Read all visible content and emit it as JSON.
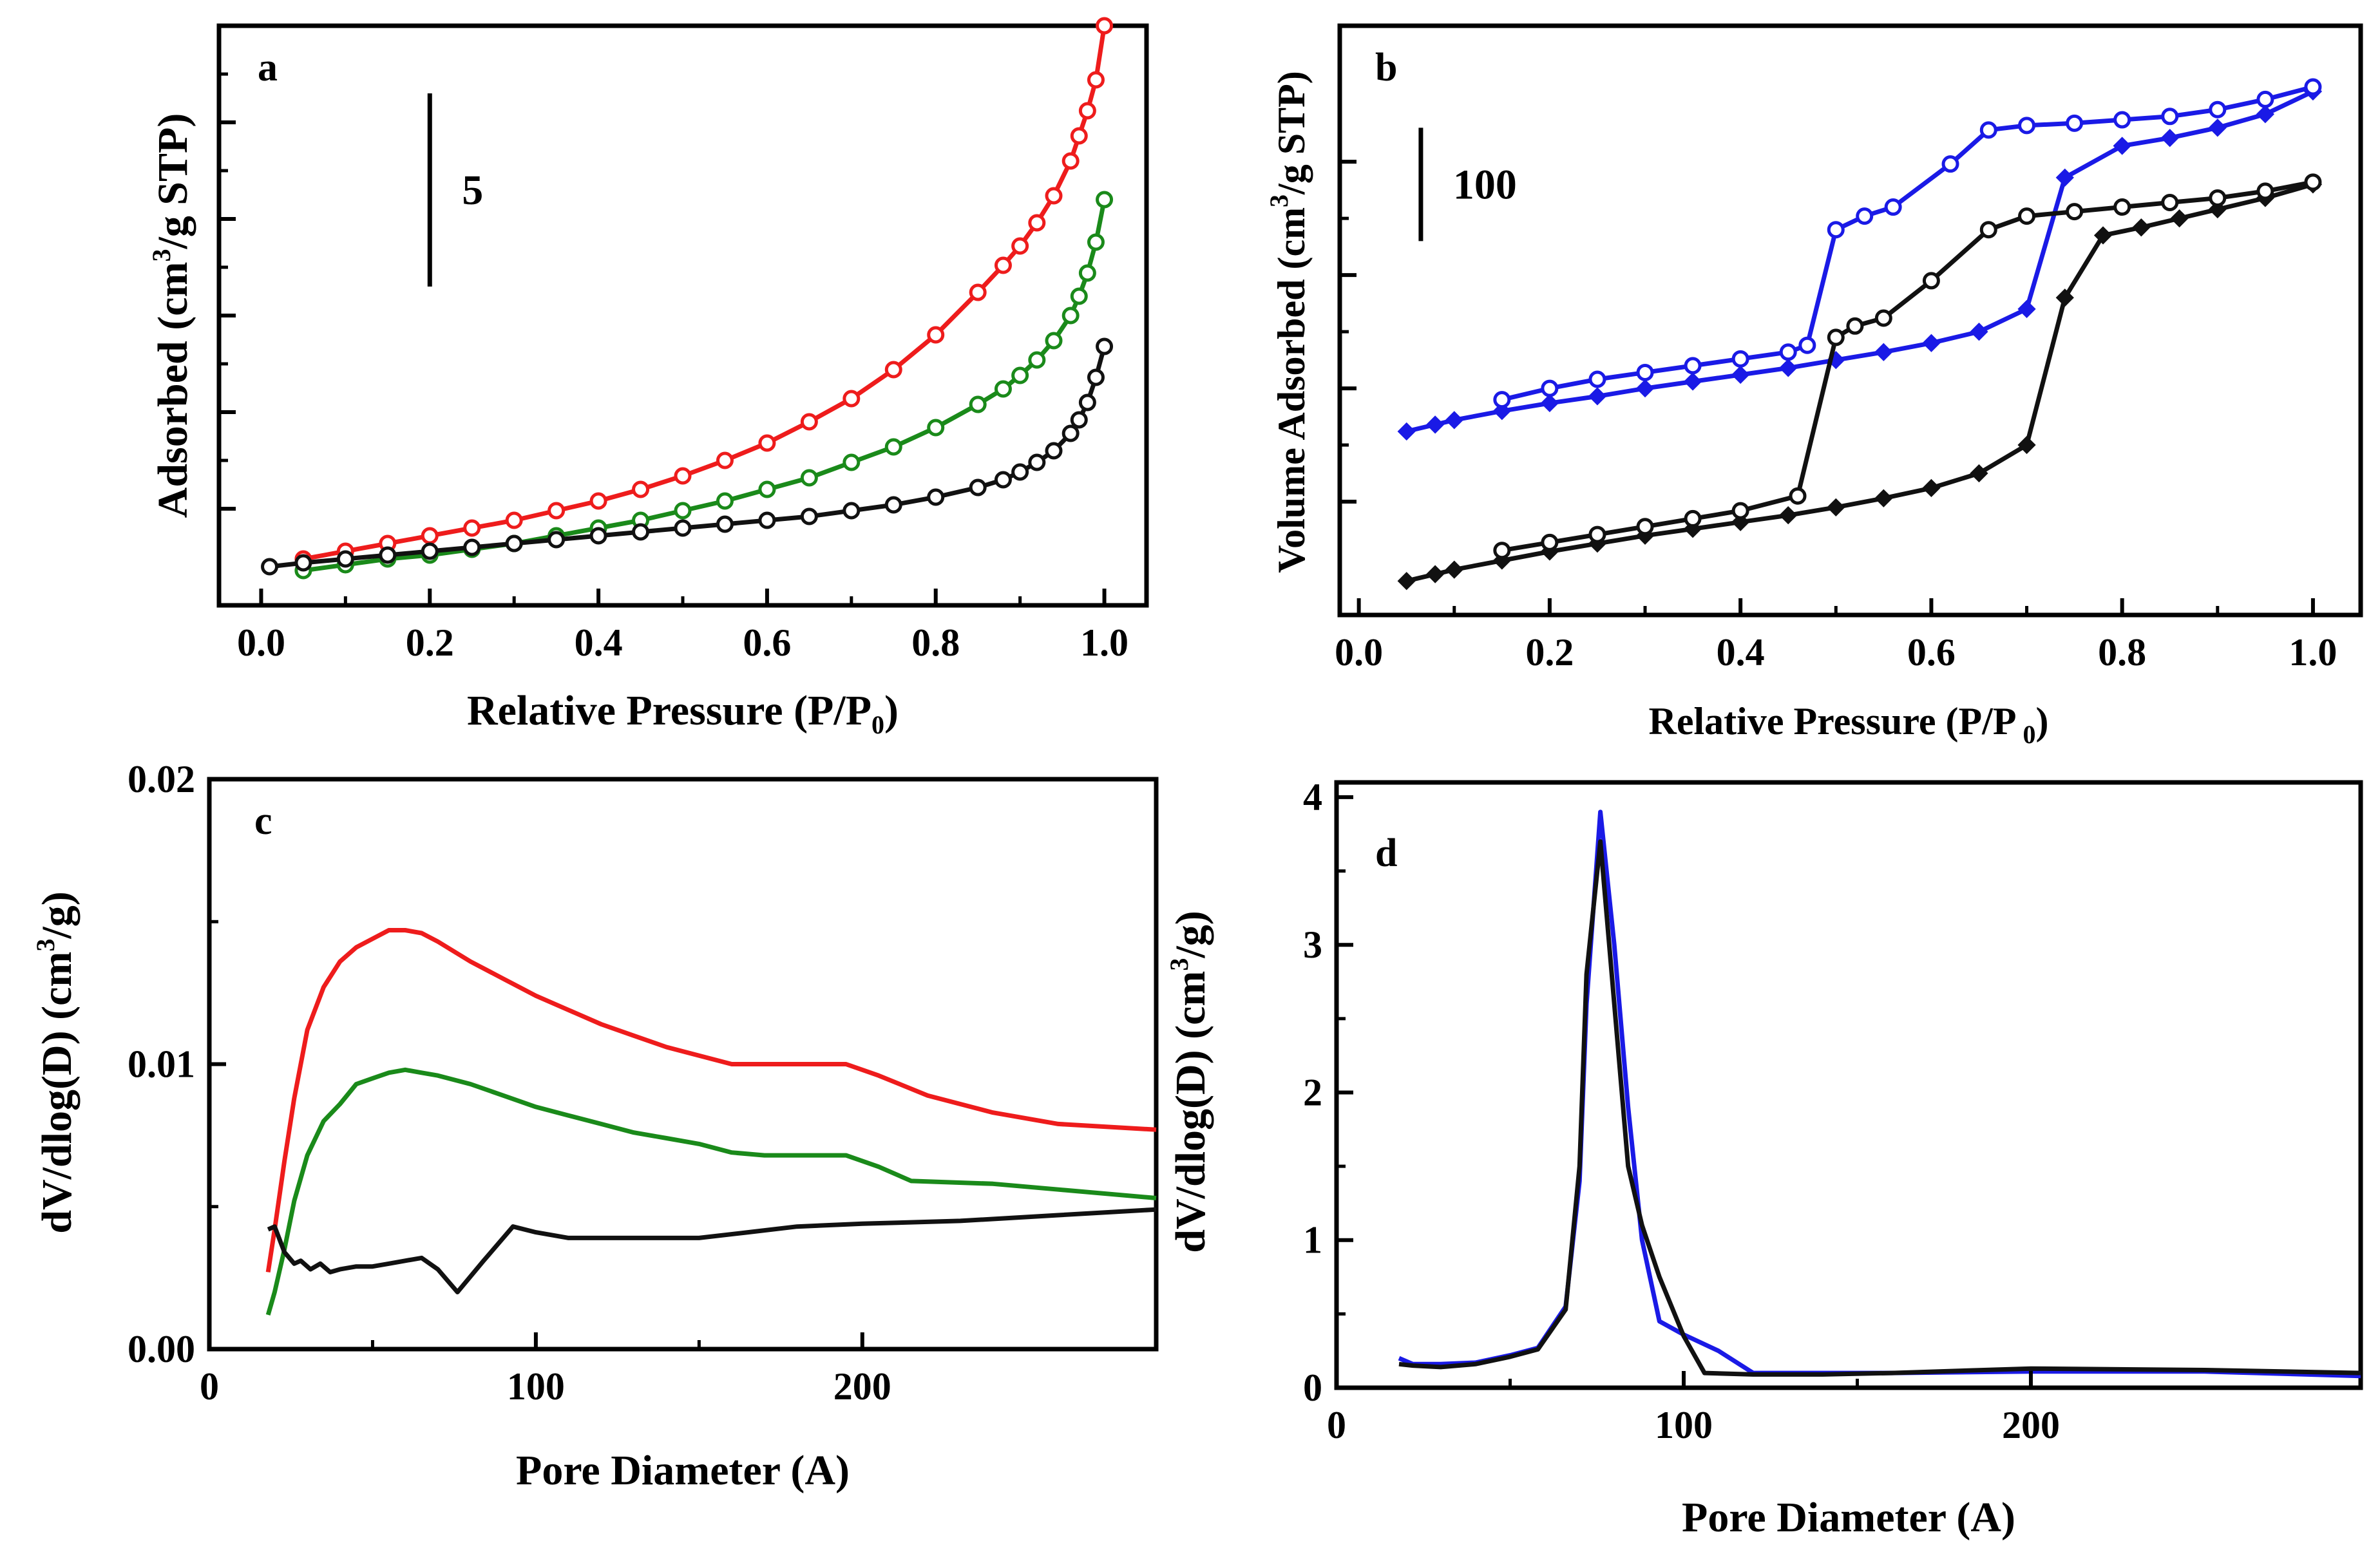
{
  "chart_data": [
    {
      "panel": "a",
      "type": "line",
      "xlabel_main": "Relative Pressure (P/P",
      "xlabel_sub": "0",
      "xlabel_end": ")",
      "ylabel_main": "Adsorbed (cm",
      "ylabel_sup": "3",
      "ylabel_end": "/g STP)",
      "xlim": [
        -0.05,
        1.05
      ],
      "ylim": [
        0,
        30
      ],
      "xticks": [
        "0.0",
        "0.2",
        "0.4",
        "0.6",
        "0.8",
        "1.0"
      ],
      "xtick_values": [
        0,
        0.2,
        0.4,
        0.6,
        0.8,
        1.0
      ],
      "ytick_values": [
        5,
        10,
        15,
        20,
        25,
        30
      ],
      "scale_bar": {
        "label": "5",
        "x": 0.2,
        "y_from": 16.5,
        "y_to": 26.5
      },
      "series": [
        {
          "name": "red",
          "color": "#ee1c1c",
          "marker": "open-circle",
          "x": [
            0.05,
            0.1,
            0.15,
            0.2,
            0.25,
            0.3,
            0.35,
            0.4,
            0.45,
            0.5,
            0.55,
            0.6,
            0.65,
            0.7,
            0.75,
            0.8,
            0.85,
            0.88,
            0.9,
            0.92,
            0.94,
            0.96,
            0.97,
            0.98,
            0.99,
            1.0
          ],
          "y": [
            2.4,
            2.8,
            3.2,
            3.6,
            4.0,
            4.4,
            4.9,
            5.4,
            6.0,
            6.7,
            7.5,
            8.4,
            9.5,
            10.7,
            12.2,
            14.0,
            16.2,
            17.6,
            18.6,
            19.8,
            21.2,
            23.0,
            24.3,
            25.6,
            27.2,
            30.0
          ]
        },
        {
          "name": "green",
          "color": "#1a8a1a",
          "marker": "open-circle",
          "x": [
            0.05,
            0.1,
            0.15,
            0.2,
            0.25,
            0.3,
            0.35,
            0.4,
            0.45,
            0.5,
            0.55,
            0.6,
            0.65,
            0.7,
            0.75,
            0.8,
            0.85,
            0.88,
            0.9,
            0.92,
            0.94,
            0.96,
            0.97,
            0.98,
            0.99,
            1.0
          ],
          "y": [
            1.8,
            2.1,
            2.4,
            2.6,
            2.9,
            3.2,
            3.6,
            4.0,
            4.4,
            4.9,
            5.4,
            6.0,
            6.6,
            7.4,
            8.2,
            9.2,
            10.4,
            11.2,
            11.9,
            12.7,
            13.7,
            15.0,
            16.0,
            17.2,
            18.8,
            21.0
          ]
        },
        {
          "name": "black",
          "color": "#111111",
          "marker": "open-circle",
          "x": [
            0.01,
            0.05,
            0.1,
            0.15,
            0.2,
            0.25,
            0.3,
            0.35,
            0.4,
            0.45,
            0.5,
            0.55,
            0.6,
            0.65,
            0.7,
            0.75,
            0.8,
            0.85,
            0.88,
            0.9,
            0.92,
            0.94,
            0.96,
            0.97,
            0.98,
            0.99,
            1.0
          ],
          "y": [
            2.0,
            2.2,
            2.4,
            2.6,
            2.8,
            3.0,
            3.2,
            3.4,
            3.6,
            3.8,
            4.0,
            4.2,
            4.4,
            4.6,
            4.9,
            5.2,
            5.6,
            6.1,
            6.5,
            6.9,
            7.4,
            8.0,
            8.9,
            9.6,
            10.5,
            11.8,
            13.4
          ]
        }
      ]
    },
    {
      "panel": "b",
      "type": "line",
      "xlabel_main": "Relative Pressure (P/P",
      "xlabel_sub": " 0",
      "xlabel_end": ")",
      "ylabel_main": "Volume Adsorbed (cm",
      "ylabel_sup": "3",
      "ylabel_end": "/g STP)",
      "xlim": [
        -0.02,
        1.05
      ],
      "ylim": [
        0,
        520
      ],
      "xticks": [
        "0.0",
        "0.2",
        "0.4",
        "0.6",
        "0.8",
        "1.0"
      ],
      "xtick_values": [
        0,
        0.2,
        0.4,
        0.6,
        0.8,
        1.0
      ],
      "ytick_values": [
        100,
        200,
        300,
        400
      ],
      "scale_bar": {
        "label": "100",
        "x": 0.065,
        "y_from": 330,
        "y_to": 430
      },
      "series": [
        {
          "name": "blue-adsorption",
          "color": "#1a1ae6",
          "marker": "filled-diamond",
          "x": [
            0.05,
            0.08,
            0.1,
            0.15,
            0.2,
            0.25,
            0.3,
            0.35,
            0.4,
            0.45,
            0.5,
            0.55,
            0.6,
            0.65,
            0.7,
            0.74,
            0.8,
            0.85,
            0.9,
            0.95,
            1.0
          ],
          "y": [
            162,
            168,
            172,
            180,
            187,
            193,
            200,
            206,
            212,
            218,
            225,
            232,
            240,
            250,
            270,
            386,
            414,
            421,
            430,
            442,
            462
          ]
        },
        {
          "name": "blue-desorption",
          "color": "#1a1ae6",
          "marker": "open-circle",
          "x": [
            1.0,
            0.95,
            0.9,
            0.85,
            0.8,
            0.75,
            0.7,
            0.66,
            0.62,
            0.56,
            0.53,
            0.5,
            0.47,
            0.45,
            0.4,
            0.35,
            0.3,
            0.25,
            0.2,
            0.15
          ],
          "y": [
            466,
            455,
            446,
            440,
            437,
            434,
            432,
            428,
            398,
            360,
            352,
            340,
            238,
            232,
            226,
            220,
            214,
            208,
            200,
            190
          ]
        },
        {
          "name": "black-adsorption",
          "color": "#111111",
          "marker": "filled-diamond",
          "x": [
            0.05,
            0.08,
            0.1,
            0.15,
            0.2,
            0.25,
            0.3,
            0.35,
            0.4,
            0.45,
            0.5,
            0.55,
            0.6,
            0.65,
            0.7,
            0.74,
            0.78,
            0.82,
            0.86,
            0.9,
            0.95,
            1.0
          ],
          "y": [
            30,
            36,
            40,
            48,
            56,
            63,
            70,
            76,
            82,
            88,
            95,
            103,
            112,
            125,
            150,
            280,
            335,
            342,
            350,
            358,
            368,
            380
          ]
        },
        {
          "name": "black-desorption",
          "color": "#111111",
          "marker": "open-circle",
          "x": [
            1.0,
            0.95,
            0.9,
            0.85,
            0.8,
            0.75,
            0.7,
            0.66,
            0.6,
            0.55,
            0.52,
            0.5,
            0.46,
            0.4,
            0.35,
            0.3,
            0.25,
            0.2,
            0.15
          ],
          "y": [
            382,
            374,
            368,
            364,
            360,
            356,
            352,
            340,
            295,
            262,
            255,
            245,
            105,
            92,
            85,
            78,
            71,
            64,
            57
          ]
        }
      ]
    },
    {
      "panel": "c",
      "type": "line",
      "xlabel": "Pore Diameter (A)",
      "ylabel_main": "dV/dlog(D) (cm",
      "ylabel_sup": "3",
      "ylabel_end": "/g)",
      "xlim": [
        0,
        290
      ],
      "ylim": [
        0,
        0.02
      ],
      "xticks": [
        "0",
        "100",
        "200"
      ],
      "xtick_values": [
        0,
        100,
        200
      ],
      "yticks": [
        "0.00",
        "0.01",
        "0.02"
      ],
      "ytick_values": [
        0,
        0.01,
        0.02
      ],
      "series": [
        {
          "name": "red",
          "color": "#ee1c1c",
          "x": [
            18,
            20,
            23,
            26,
            30,
            35,
            40,
            45,
            50,
            55,
            60,
            65,
            70,
            80,
            90,
            100,
            110,
            120,
            130,
            140,
            150,
            160,
            170,
            180,
            195,
            205,
            220,
            240,
            260,
            290
          ],
          "y": [
            0.0027,
            0.0042,
            0.0066,
            0.0088,
            0.0112,
            0.0127,
            0.0136,
            0.0141,
            0.0144,
            0.0147,
            0.0147,
            0.0146,
            0.0143,
            0.0136,
            0.013,
            0.0124,
            0.0119,
            0.0114,
            0.011,
            0.0106,
            0.0103,
            0.01,
            0.01,
            0.01,
            0.01,
            0.0096,
            0.0089,
            0.0083,
            0.0079,
            0.0077
          ]
        },
        {
          "name": "green",
          "color": "#1a8a1a",
          "x": [
            18,
            20,
            23,
            26,
            30,
            35,
            40,
            45,
            50,
            55,
            60,
            65,
            70,
            80,
            90,
            100,
            110,
            120,
            130,
            140,
            150,
            160,
            170,
            180,
            195,
            205,
            215,
            240,
            260,
            290
          ],
          "y": [
            0.0012,
            0.002,
            0.0035,
            0.0052,
            0.0068,
            0.008,
            0.0086,
            0.0093,
            0.0095,
            0.0097,
            0.0098,
            0.0097,
            0.0096,
            0.0093,
            0.0089,
            0.0085,
            0.0082,
            0.0079,
            0.0076,
            0.0074,
            0.0072,
            0.0069,
            0.0068,
            0.0068,
            0.0068,
            0.0064,
            0.0059,
            0.0058,
            0.0056,
            0.0053
          ]
        },
        {
          "name": "black",
          "color": "#111111",
          "x": [
            18,
            20,
            23,
            26,
            28,
            31,
            34,
            37,
            40,
            45,
            50,
            55,
            60,
            65,
            70,
            76,
            84,
            93,
            100,
            110,
            120,
            150,
            165,
            180,
            200,
            230,
            260,
            290
          ],
          "y": [
            0.0042,
            0.0043,
            0.0034,
            0.003,
            0.0031,
            0.0028,
            0.003,
            0.0027,
            0.0028,
            0.0029,
            0.0029,
            0.003,
            0.0031,
            0.0032,
            0.0028,
            0.002,
            0.0031,
            0.0043,
            0.0041,
            0.0039,
            0.0039,
            0.0039,
            0.0041,
            0.0043,
            0.0044,
            0.0045,
            0.0047,
            0.0049
          ]
        }
      ]
    },
    {
      "panel": "d",
      "type": "line",
      "xlabel": "Pore Diameter (A)",
      "ylabel_main": "dV/dlog(D) (cm",
      "ylabel_sup": "3",
      "ylabel_end": "/g)",
      "xlim": [
        0,
        295
      ],
      "ylim": [
        0,
        4.1
      ],
      "xticks": [
        "0",
        "100",
        "200"
      ],
      "xtick_values": [
        0,
        100,
        200
      ],
      "yticks": [
        "0",
        "1",
        "2",
        "3",
        "4"
      ],
      "ytick_values": [
        0,
        1,
        2,
        3,
        4
      ],
      "series": [
        {
          "name": "blue",
          "color": "#1a1ae6",
          "x": [
            18,
            22,
            30,
            40,
            50,
            58,
            66,
            70,
            72,
            76,
            80,
            84,
            88,
            93,
            100,
            110,
            120,
            140,
            160,
            200,
            250,
            295
          ],
          "y": [
            0.2,
            0.16,
            0.16,
            0.17,
            0.22,
            0.27,
            0.55,
            1.4,
            2.6,
            3.9,
            3.0,
            1.9,
            1.0,
            0.45,
            0.36,
            0.25,
            0.1,
            0.1,
            0.1,
            0.11,
            0.11,
            0.08
          ]
        },
        {
          "name": "black",
          "color": "#111111",
          "x": [
            18,
            22,
            30,
            40,
            50,
            58,
            66,
            70,
            72,
            76,
            80,
            84,
            88,
            93,
            100,
            106,
            120,
            140,
            160,
            200,
            250,
            295
          ],
          "y": [
            0.16,
            0.15,
            0.14,
            0.16,
            0.21,
            0.26,
            0.53,
            1.5,
            2.8,
            3.7,
            2.6,
            1.5,
            1.1,
            0.75,
            0.35,
            0.1,
            0.09,
            0.09,
            0.1,
            0.13,
            0.12,
            0.1
          ]
        }
      ]
    }
  ]
}
